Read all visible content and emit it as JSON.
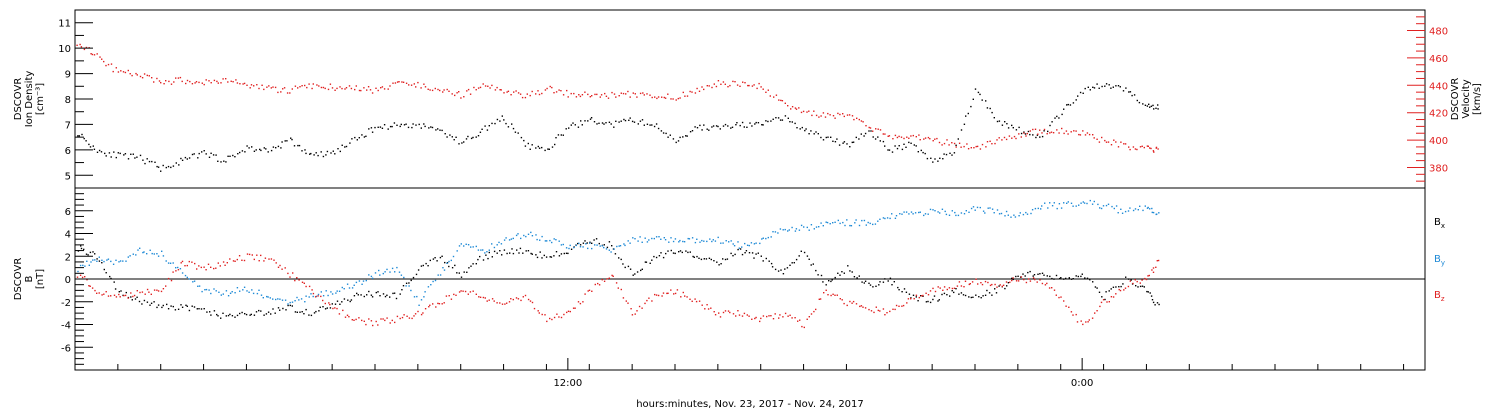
{
  "chart_data": [
    {
      "type": "scatter",
      "panel": "plasma",
      "ylabel_lines": [
        "DSCOVR",
        "Ion Density",
        "[cm⁻³]"
      ],
      "ylabel2_lines": [
        "DSCOVR",
        "Velocity",
        "[km/s]"
      ],
      "ylim": [
        4.5,
        11.5
      ],
      "y_ticks": [
        5,
        6,
        7,
        8,
        9,
        10,
        11
      ],
      "y2lim": [
        365,
        495
      ],
      "y2_ticks": [
        380,
        400,
        420,
        440,
        460,
        480
      ],
      "series": [
        {
          "color": "#000000",
          "axis": "left",
          "x": [
            0.05,
            0.5,
            1,
            1.5,
            2,
            2.5,
            3,
            3.5,
            4,
            4.5,
            5,
            5.5,
            6,
            6.5,
            7,
            7.5,
            8,
            8.5,
            9,
            9.5,
            10,
            10.5,
            11,
            11.5,
            12,
            12.5,
            13,
            13.5,
            14,
            14.5,
            15,
            15.5,
            16,
            16.5,
            17,
            17.5,
            18,
            18.5,
            19,
            19.5,
            20,
            20.5,
            21,
            21.5,
            22,
            22.5,
            23,
            23.5,
            24,
            24.5,
            25,
            25.3
          ],
          "values": [
            6.7,
            6.0,
            5.8,
            5.7,
            5.3,
            5.6,
            5.9,
            5.6,
            6.1,
            6.0,
            6.4,
            5.8,
            5.9,
            6.4,
            6.9,
            7.0,
            7.0,
            6.8,
            6.3,
            6.8,
            7.3,
            6.2,
            6.0,
            6.9,
            7.2,
            7.0,
            7.2,
            7.0,
            6.4,
            6.9,
            6.9,
            7.0,
            7.0,
            7.3,
            6.8,
            6.5,
            6.2,
            6.8,
            6.0,
            6.3,
            5.6,
            5.9,
            8.4,
            7.2,
            6.8,
            6.5,
            7.5,
            8.3,
            8.6,
            8.4,
            7.8,
            7.7
          ]
        },
        {
          "color": "#e02020",
          "axis": "right",
          "x": [
            0.05,
            0.5,
            1,
            1.5,
            2,
            2.5,
            3,
            3.5,
            4,
            4.5,
            5,
            5.5,
            6,
            6.5,
            7,
            7.5,
            8,
            8.5,
            9,
            9.5,
            10,
            10.5,
            11,
            11.5,
            12,
            12.5,
            13,
            13.5,
            14,
            14.5,
            15,
            15.5,
            16,
            16.5,
            17,
            17.5,
            18,
            18.5,
            19,
            19.5,
            20,
            20.5,
            21,
            21.5,
            22,
            22.5,
            23,
            23.5,
            24,
            24.5,
            25,
            25.3
          ],
          "values": [
            472,
            462,
            450,
            448,
            443,
            444,
            442,
            445,
            440,
            438,
            437,
            440,
            439,
            438,
            437,
            441,
            441,
            438,
            433,
            440,
            437,
            432,
            438,
            434,
            433,
            433,
            434,
            432,
            432,
            437,
            442,
            441,
            440,
            427,
            422,
            418,
            418,
            410,
            403,
            404,
            400,
            398,
            395,
            400,
            404,
            407,
            407,
            405,
            400,
            396,
            394,
            393
          ]
        }
      ]
    },
    {
      "type": "scatter",
      "panel": "magnetic-field",
      "ylabel_lines": [
        "DSCOVR",
        "B",
        "[nT]"
      ],
      "ylim": [
        -8,
        8
      ],
      "y_ticks": [
        -6,
        -4,
        -2,
        0,
        2,
        4,
        6
      ],
      "xlim": [
        0,
        31.5
      ],
      "x_tick_labels": [
        {
          "x": 11.5,
          "label": "12:00"
        },
        {
          "x": 23.5,
          "label": "0:00"
        }
      ],
      "xlabel": "hours:minutes, Nov. 23, 2017 - Nov. 24, 2017",
      "series": [
        {
          "name": "Bx",
          "color": "#000000",
          "x": [
            0.05,
            0.5,
            1,
            1.5,
            2,
            2.5,
            3,
            3.5,
            4,
            4.5,
            5,
            5.5,
            6,
            6.5,
            7,
            7.5,
            8,
            8.5,
            9,
            9.5,
            10,
            10.5,
            11,
            11.5,
            12,
            12.5,
            13,
            13.5,
            14,
            14.5,
            15,
            15.5,
            16,
            16.5,
            17,
            17.5,
            18,
            18.5,
            19,
            19.5,
            20,
            20.5,
            21,
            21.5,
            22,
            22.5,
            23,
            23.5,
            24,
            24.5,
            25,
            25.3
          ],
          "values": [
            2.8,
            2.0,
            -1.0,
            -1.8,
            -2.3,
            -2.5,
            -2.7,
            -3.3,
            -3.0,
            -2.8,
            -2.5,
            -3.0,
            -2.2,
            -1.5,
            -1.2,
            -1.5,
            1.0,
            2.0,
            0.5,
            2.0,
            2.5,
            2.5,
            2.0,
            2.5,
            3.5,
            3.0,
            0.5,
            2.0,
            2.5,
            2.0,
            1.5,
            2.5,
            2.0,
            0.5,
            2.5,
            -0.5,
            1.0,
            -0.5,
            0.0,
            -1.5,
            -1.8,
            -1.0,
            -1.5,
            -1.0,
            0.5,
            0.5,
            0.0,
            0.5,
            -1.5,
            0.0,
            -1.0,
            -2.5
          ]
        },
        {
          "name": "By",
          "color": "#1f8ad6",
          "x": [
            0.05,
            0.5,
            1,
            1.5,
            2,
            2.5,
            3,
            3.5,
            4,
            4.5,
            5,
            5.5,
            6,
            6.5,
            7,
            7.5,
            8,
            8.5,
            9,
            9.5,
            10,
            10.5,
            11,
            11.5,
            12,
            12.5,
            13,
            13.5,
            14,
            14.5,
            15,
            15.5,
            16,
            16.5,
            17,
            17.5,
            18,
            18.5,
            19,
            19.5,
            20,
            20.5,
            21,
            21.5,
            22,
            22.5,
            23,
            23.5,
            24,
            24.5,
            25,
            25.3
          ],
          "values": [
            1.0,
            1.8,
            1.5,
            2.5,
            2.3,
            0.5,
            -1.0,
            -1.2,
            -0.8,
            -1.5,
            -2.0,
            -1.5,
            -1.0,
            -0.5,
            0.5,
            1.0,
            -2.0,
            0.5,
            3.0,
            2.5,
            3.5,
            4.0,
            3.5,
            3.0,
            3.0,
            2.5,
            3.5,
            3.5,
            3.5,
            3.5,
            3.5,
            3.0,
            3.5,
            4.5,
            4.5,
            5.0,
            5.0,
            5.0,
            5.5,
            5.8,
            6.0,
            5.8,
            6.2,
            6.0,
            5.5,
            6.5,
            6.5,
            6.8,
            6.5,
            6.0,
            6.3,
            5.8
          ]
        },
        {
          "name": "Bz",
          "color": "#e02020",
          "x": [
            0.05,
            0.5,
            1,
            1.5,
            2,
            2.5,
            3,
            3.5,
            4,
            4.5,
            5,
            5.5,
            6,
            6.5,
            7,
            7.5,
            8,
            8.5,
            9,
            9.5,
            10,
            10.5,
            11,
            11.5,
            12,
            12.5,
            13,
            13.5,
            14,
            14.5,
            15,
            15.5,
            16,
            16.5,
            17,
            17.5,
            18,
            18.5,
            19,
            19.5,
            20,
            20.5,
            21,
            21.5,
            22,
            22.5,
            23,
            23.5,
            24,
            24.5,
            25,
            25.3
          ],
          "values": [
            0.5,
            -1.0,
            -1.5,
            -1.2,
            -1.0,
            1.5,
            1.0,
            1.5,
            2.0,
            1.8,
            0.5,
            -1.0,
            -2.5,
            -3.5,
            -3.8,
            -3.5,
            -3.0,
            -2.0,
            -1.0,
            -1.5,
            -2.0,
            -1.5,
            -3.5,
            -3.0,
            -1.0,
            0.5,
            -3.0,
            -1.5,
            -1.0,
            -2.0,
            -3.0,
            -3.0,
            -3.5,
            -3.0,
            -4.0,
            -1.0,
            -2.0,
            -2.5,
            -3.0,
            -1.5,
            -1.0,
            -0.5,
            -0.2,
            -0.5,
            0.0,
            0.0,
            -1.5,
            -4.0,
            -2.0,
            -0.5,
            0.0,
            2.0
          ]
        }
      ]
    }
  ]
}
